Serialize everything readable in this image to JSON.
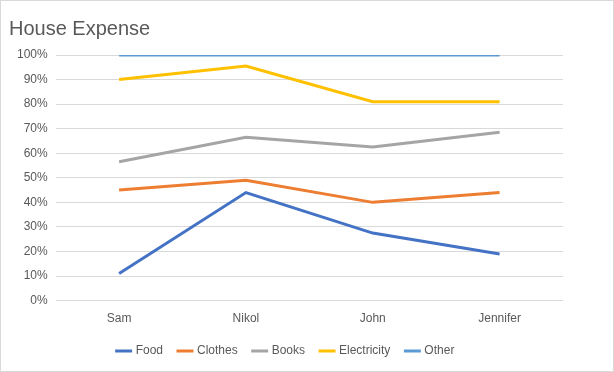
{
  "chart_data": {
    "type": "line",
    "title": "House Expense",
    "categories": [
      "Sam",
      "Nikol",
      "John",
      "Jennifer"
    ],
    "series": [
      {
        "name": "Food",
        "color": "#4472c4",
        "values": [
          11,
          44,
          27.5,
          19
        ]
      },
      {
        "name": "Clothes",
        "color": "#ed7d31",
        "values": [
          34,
          5,
          12.5,
          25
        ]
      },
      {
        "name": "Books",
        "color": "#a5a5a5",
        "values": [
          11.5,
          17.5,
          22.5,
          24.5
        ]
      },
      {
        "name": "Electricity",
        "color": "#ffc000",
        "values": [
          33.5,
          29,
          18.5,
          12.5
        ]
      },
      {
        "name": "Other",
        "color": "#5b9bd5",
        "values": [
          10,
          4.5,
          19,
          19
        ]
      }
    ],
    "stacked": true,
    "ylim": [
      0,
      100
    ],
    "yticks": [
      {
        "value": 0,
        "label": "0%"
      },
      {
        "value": 10,
        "label": "10%"
      },
      {
        "value": 20,
        "label": "20%"
      },
      {
        "value": 30,
        "label": "30%"
      },
      {
        "value": 40,
        "label": "40%"
      },
      {
        "value": 50,
        "label": "50%"
      },
      {
        "value": 60,
        "label": "60%"
      },
      {
        "value": 70,
        "label": "70%"
      },
      {
        "value": 80,
        "label": "80%"
      },
      {
        "value": 90,
        "label": "90%"
      },
      {
        "value": 100,
        "label": "100%"
      }
    ],
    "grid": true,
    "legend": "bottom"
  }
}
